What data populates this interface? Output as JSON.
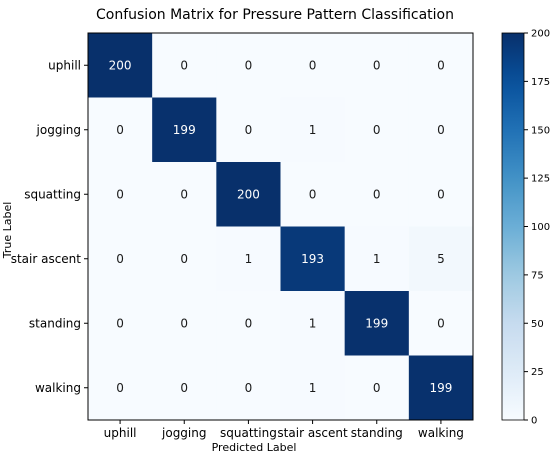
{
  "chart_data": {
    "type": "heatmap",
    "title": "Confusion Matrix for Pressure Pattern Classification",
    "xlabel": "Predicted Label",
    "ylabel": "True Label",
    "x_categories": [
      "uphill",
      "jogging",
      "squatting",
      "stair ascent",
      "standing",
      "walking"
    ],
    "y_categories": [
      "uphill",
      "jogging",
      "squatting",
      "stair ascent",
      "standing",
      "walking"
    ],
    "values": [
      [
        200,
        0,
        0,
        0,
        0,
        0
      ],
      [
        0,
        199,
        0,
        1,
        0,
        0
      ],
      [
        0,
        0,
        200,
        0,
        0,
        0
      ],
      [
        0,
        0,
        1,
        193,
        1,
        5
      ],
      [
        0,
        0,
        0,
        1,
        199,
        0
      ],
      [
        0,
        0,
        0,
        1,
        0,
        199
      ]
    ],
    "colorbar": {
      "min": 0,
      "max": 200,
      "ticks": [
        0,
        25,
        50,
        75,
        100,
        125,
        150,
        175,
        200
      ],
      "colormap": "Blues"
    },
    "grid": false
  }
}
